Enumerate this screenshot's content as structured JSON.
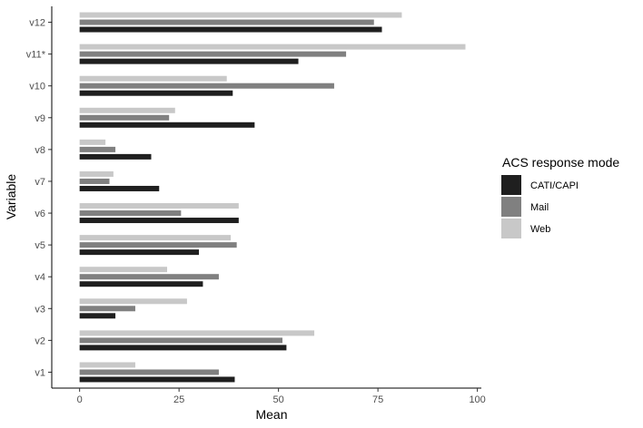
{
  "chart_data": {
    "type": "bar",
    "orientation": "horizontal",
    "xlabel": "Mean",
    "ylabel": "Variable",
    "xlim": [
      -7,
      101
    ],
    "xticks": [
      0,
      25,
      50,
      75,
      100
    ],
    "grid": false,
    "legend_position": "right",
    "legend_title": "ACS response mode",
    "categories": [
      "v1",
      "v2",
      "v3",
      "v4",
      "v5",
      "v6",
      "v7",
      "v8",
      "v9",
      "v10",
      "v11*",
      "v12"
    ],
    "series": [
      {
        "name": "CATI/CAPI",
        "color": "#1f1f1f",
        "values": [
          39,
          52,
          9,
          31,
          30,
          40,
          20,
          18,
          44,
          38.5,
          55,
          76
        ]
      },
      {
        "name": "Mail",
        "color": "#808080",
        "values": [
          35,
          51,
          14,
          35,
          39.5,
          25.5,
          7.5,
          9,
          22.5,
          64,
          67,
          74
        ]
      },
      {
        "name": "Web",
        "color": "#c8c8c8",
        "values": [
          14,
          59,
          27,
          22,
          38,
          40,
          8.5,
          6.5,
          24,
          37,
          97,
          81
        ]
      }
    ]
  }
}
